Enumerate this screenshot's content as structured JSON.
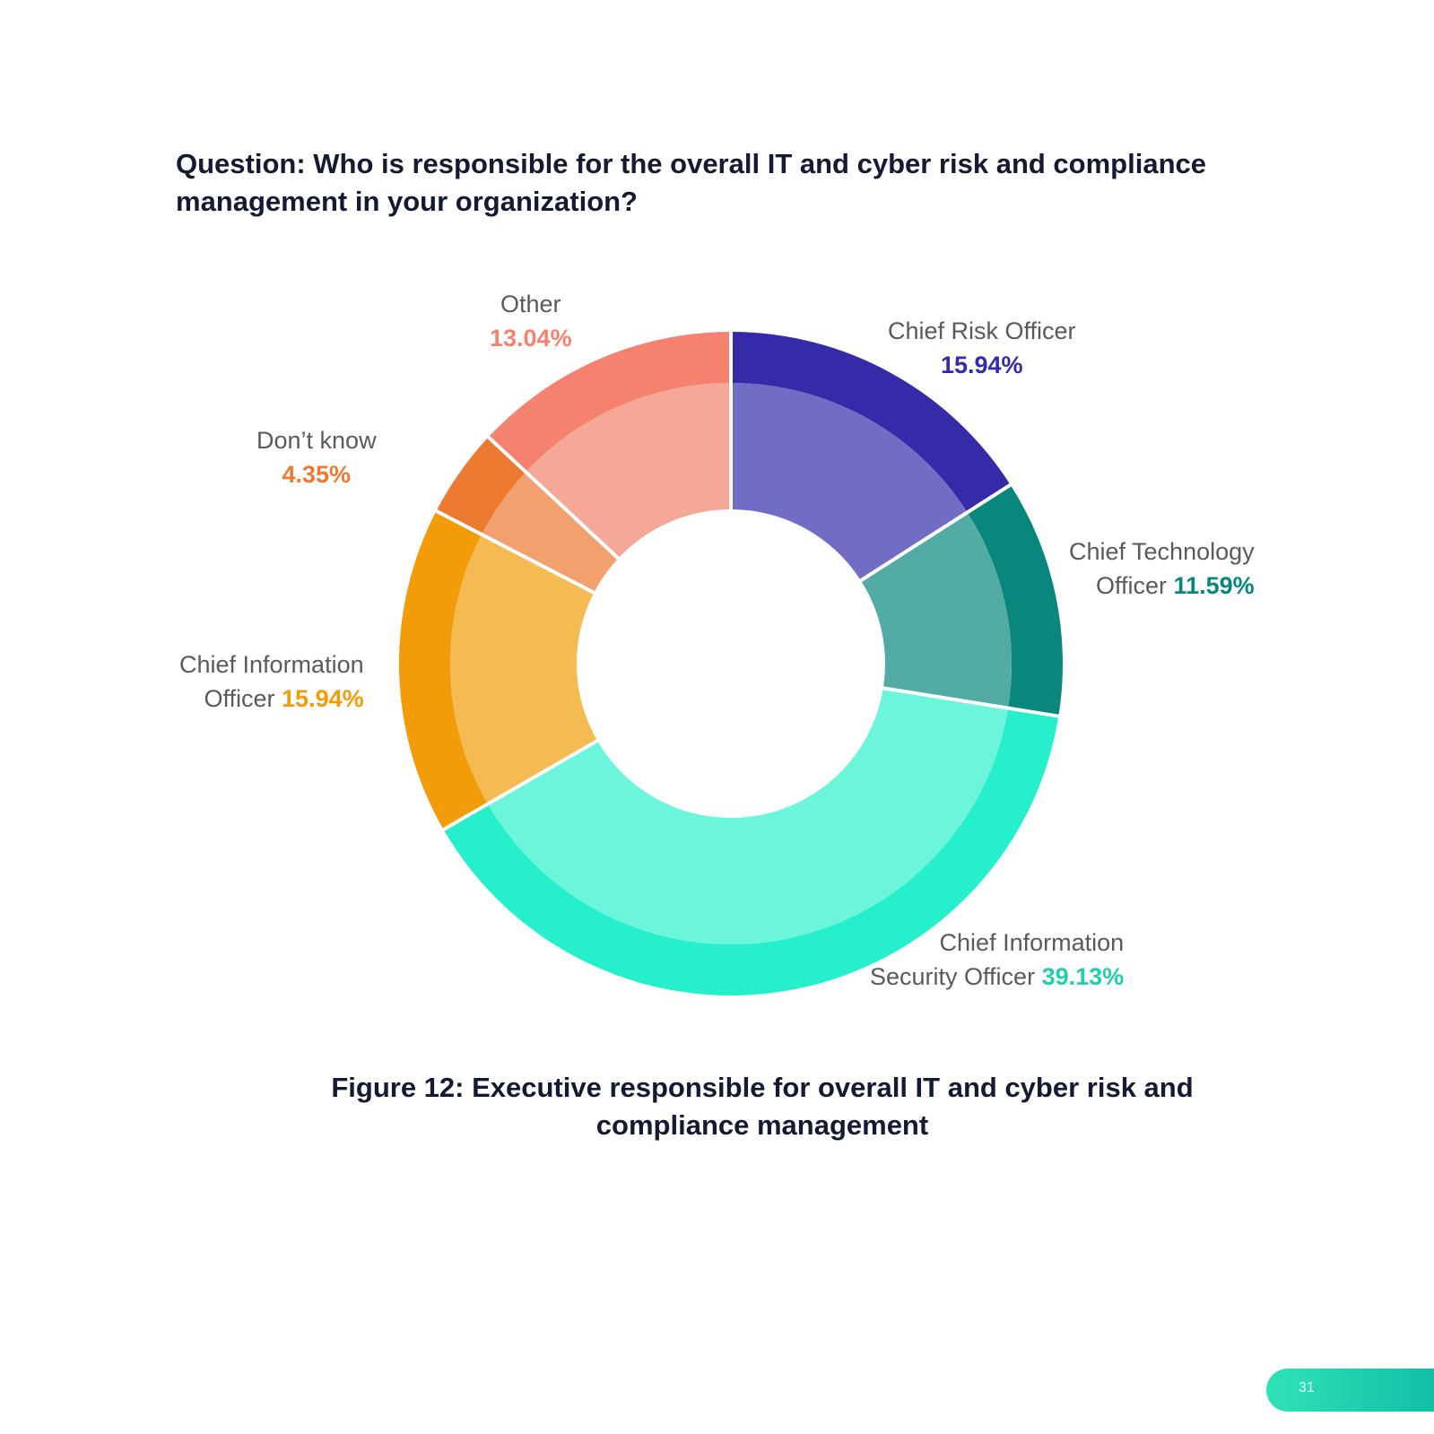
{
  "question": {
    "line1": "Question: Who is responsible for the overall IT and cyber risk and compliance",
    "line2": "management in your organization?"
  },
  "caption": {
    "line1": "Figure 12: Executive responsible for overall IT and cyber risk and",
    "line2": "compliance management"
  },
  "page_number": "31",
  "chart_data": {
    "type": "pie",
    "variant": "donut",
    "unit": "%",
    "start_angle_deg": 0,
    "direction": "clockwise",
    "slices": [
      {
        "name": "Chief Risk Officer",
        "label_lines": [
          "Chief Risk Officer"
        ],
        "value": 15.94,
        "value_label": "15.94%",
        "outer_color": "#372aa9",
        "inner_color": "#736cc4",
        "label_color": "#372aa9"
      },
      {
        "name": "Chief Technology Officer",
        "label_lines": [
          "Chief Technology",
          "Officer"
        ],
        "value": 11.59,
        "value_label": "11.59%",
        "outer_color": "#09877c",
        "inner_color": "#53aba6",
        "label_color": "#09877c"
      },
      {
        "name": "Chief Information Security Officer",
        "label_lines": [
          "Chief Information",
          "Security Officer"
        ],
        "value": 39.13,
        "value_label": "39.13%",
        "outer_color": "#26efcc",
        "inner_color": "#6bf6dc",
        "label_color": "#1fcfad"
      },
      {
        "name": "Chief Information Officer",
        "label_lines": [
          "Chief Information",
          "Officer"
        ],
        "value": 15.94,
        "value_label": "15.94%",
        "outer_color": "#f39c09",
        "inner_color": "#f4bb53",
        "label_color": "#f39c09"
      },
      {
        "name": "Don't know",
        "label_lines": [
          "Don’t know"
        ],
        "value": 4.35,
        "value_label": "4.35%",
        "outer_color": "#ec7a31",
        "inner_color": "#f2a16e",
        "label_color": "#ec7a31"
      },
      {
        "name": "Other",
        "label_lines": [
          "Other"
        ],
        "value": 13.04,
        "value_label": "13.04%",
        "outer_color": "#f5826e",
        "inner_color": "#f7a797",
        "label_color": "#f5826e"
      }
    ]
  }
}
